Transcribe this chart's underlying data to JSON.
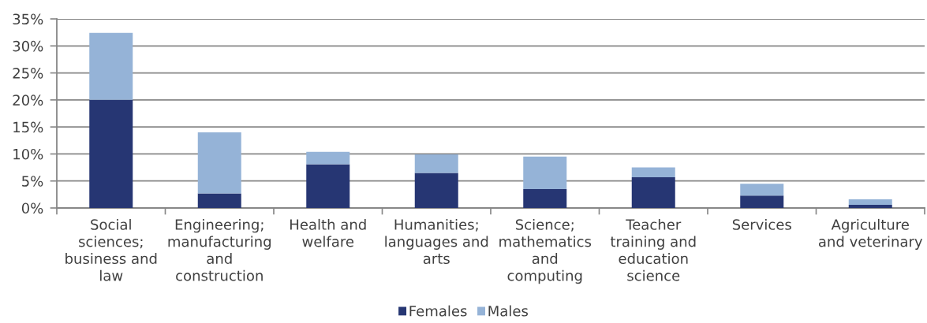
{
  "chart_data": {
    "type": "bar",
    "stacked": true,
    "categories": [
      "Social sciences; business and law",
      "Engineering; manufacturing and construction",
      "Health and welfare",
      "Humanities; languages and arts",
      "Science; mathematics and computing",
      "Teacher training and education science",
      "Services",
      "Agriculture and veterinary"
    ],
    "series": [
      {
        "name": "Females",
        "color": "#263673",
        "values": [
          20.0,
          2.7,
          8.1,
          6.5,
          3.5,
          5.7,
          2.3,
          0.6
        ]
      },
      {
        "name": "Males",
        "color": "#95b3d7",
        "values": [
          12.4,
          11.3,
          2.3,
          3.4,
          6.0,
          1.8,
          2.2,
          1.0
        ]
      }
    ],
    "ylim": [
      0,
      35
    ],
    "yticks": [
      {
        "value": 0,
        "label": "0%"
      },
      {
        "value": 5,
        "label": "5%"
      },
      {
        "value": 10,
        "label": "10%"
      },
      {
        "value": 15,
        "label": "15%"
      },
      {
        "value": 20,
        "label": "20%"
      },
      {
        "value": 25,
        "label": "25%"
      },
      {
        "value": 30,
        "label": "30%"
      },
      {
        "value": 35,
        "label": "35%"
      }
    ],
    "grid": "y",
    "legend": "bottom"
  }
}
